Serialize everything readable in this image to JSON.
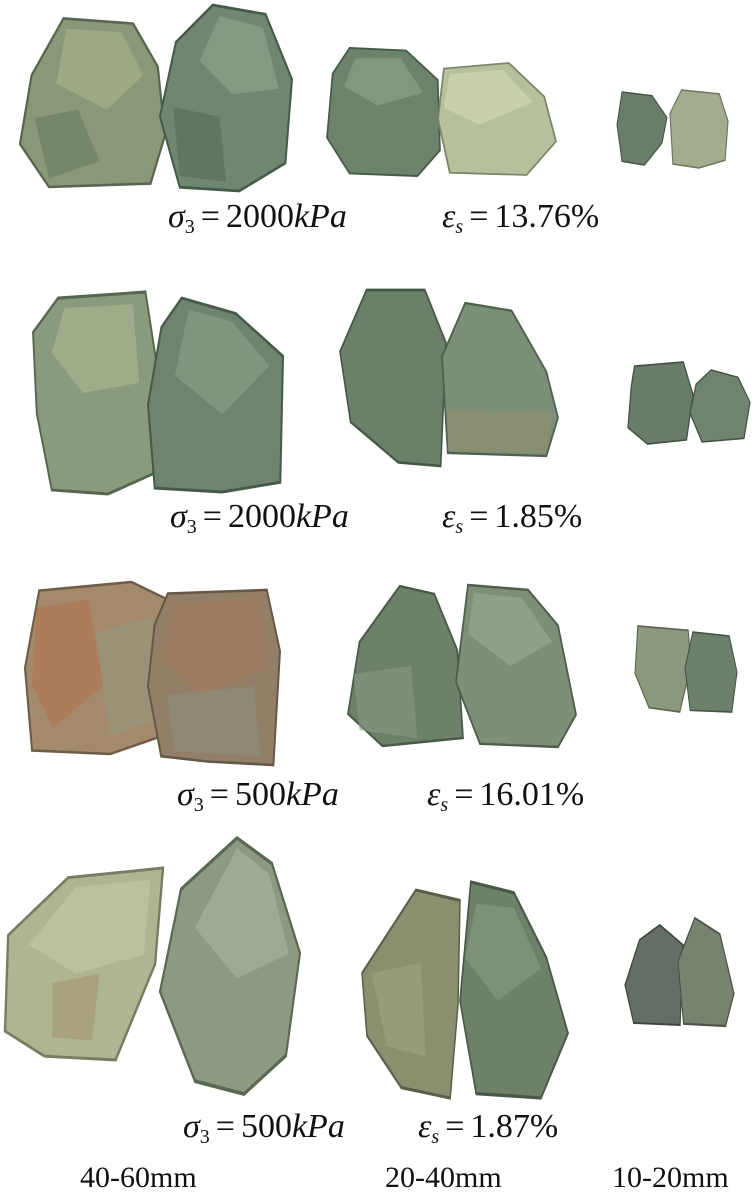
{
  "rows": [
    {
      "sigma_value": "2000",
      "sigma_unit": "kPa",
      "eps_value": "13.76%"
    },
    {
      "sigma_value": "2000",
      "sigma_unit": "kPa",
      "eps_value": "1.85%"
    },
    {
      "sigma_value": "500",
      "sigma_unit": "kPa",
      "eps_value": "16.01%"
    },
    {
      "sigma_value": "500",
      "sigma_unit": "kPa",
      "eps_value": "1.87%"
    }
  ],
  "symbols": {
    "sigma": "σ",
    "sigma_sub": "3",
    "epsilon": "ε",
    "epsilon_sub": "s",
    "equals": "="
  },
  "size_labels": [
    "40-60mm",
    "20-40mm",
    "10-20mm"
  ],
  "colors": {
    "rock_green": "#6f8a72",
    "rock_light": "#b9c2a3",
    "rock_dark": "#3f5546",
    "rust": "#b2714e"
  }
}
